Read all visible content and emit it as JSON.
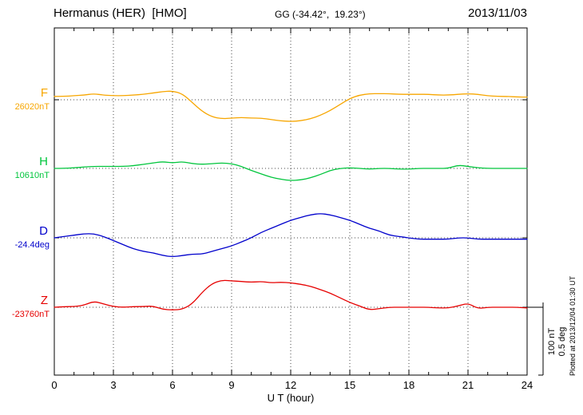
{
  "chart_data": {
    "type": "line",
    "title": "Hermanus (HER)  [HMO]",
    "station_coords": "GG (-34.42°,  19.23°)",
    "date": "2013/11/03",
    "xlabel": "U T (hour)",
    "x_range": [
      0,
      24
    ],
    "x_ticks": [
      0,
      3,
      6,
      9,
      12,
      15,
      18,
      21,
      24
    ],
    "grid": "dotted",
    "legend_position": "left-of-baselines",
    "scale_per_division": {
      "nT": 100,
      "deg": 0.5
    },
    "scale_labels": [
      "100 nT",
      "0.5 deg"
    ],
    "plotted_at": "Plotted at 2013/12/04 01:30 UT",
    "values_are": "deviation from baseline, plotted against baseline dotted line",
    "x": [
      0,
      0.5,
      1,
      1.5,
      2,
      2.5,
      3,
      3.5,
      4,
      4.5,
      5,
      5.5,
      6,
      6.5,
      7,
      7.5,
      8,
      8.5,
      9,
      9.5,
      10,
      10.5,
      11,
      11.5,
      12,
      12.5,
      13,
      13.5,
      14,
      14.5,
      15,
      15.5,
      16,
      16.5,
      17,
      17.5,
      18,
      18.5,
      19,
      19.5,
      20,
      20.5,
      21,
      21.5,
      22,
      22.5,
      23,
      23.5,
      24
    ],
    "series": [
      {
        "name": "F",
        "color": "#F7A600",
        "unit": "nT",
        "baseline_value": 26020,
        "baseline_label": "26020nT",
        "values": [
          5,
          5,
          6,
          7,
          9,
          7,
          6,
          6,
          7,
          8,
          10,
          12,
          13,
          9,
          -4,
          -17,
          -25,
          -28,
          -27,
          -26,
          -27,
          -27,
          -29,
          -31,
          -32,
          -31,
          -28,
          -23,
          -16,
          -7,
          2,
          7,
          9,
          9,
          9,
          8,
          8,
          8,
          8,
          7,
          7,
          8,
          9,
          8,
          6,
          5,
          5,
          4,
          4
        ]
      },
      {
        "name": "H",
        "color": "#00C53C",
        "unit": "nT",
        "baseline_value": 10610,
        "baseline_label": "10610nT",
        "values": [
          0,
          0,
          1,
          2,
          3,
          3,
          3,
          3,
          4,
          6,
          8,
          10,
          8,
          10,
          7,
          6,
          7,
          8,
          7,
          3,
          -3,
          -8,
          -13,
          -16,
          -18,
          -17,
          -14,
          -9,
          -3,
          0,
          1,
          0,
          -1,
          0,
          0,
          -1,
          -1,
          0,
          0,
          0,
          0,
          5,
          3,
          1,
          0,
          0,
          0,
          0,
          0
        ]
      },
      {
        "name": "D",
        "color": "#0000CC",
        "unit": "deg",
        "baseline_value": -24.4,
        "baseline_label": "-24.4deg",
        "values": [
          0.0,
          0.01,
          0.02,
          0.03,
          0.03,
          0.01,
          -0.02,
          -0.05,
          -0.08,
          -0.1,
          -0.11,
          -0.13,
          -0.14,
          -0.13,
          -0.12,
          -0.12,
          -0.1,
          -0.08,
          -0.06,
          -0.03,
          0.0,
          0.04,
          0.07,
          0.1,
          0.13,
          0.15,
          0.17,
          0.18,
          0.17,
          0.15,
          0.13,
          0.1,
          0.07,
          0.05,
          0.02,
          0.01,
          0.0,
          -0.01,
          -0.01,
          -0.01,
          -0.01,
          0.0,
          0.0,
          -0.01,
          -0.01,
          -0.01,
          -0.01,
          -0.01,
          -0.01
        ]
      },
      {
        "name": "Z",
        "color": "#E60000",
        "unit": "nT",
        "baseline_value": -23760,
        "baseline_label": "-23760nT",
        "values": [
          0,
          1,
          1,
          3,
          9,
          5,
          1,
          0,
          1,
          1,
          2,
          -3,
          -4,
          -3,
          5,
          22,
          35,
          40,
          39,
          38,
          37,
          38,
          36,
          37,
          36,
          34,
          31,
          26,
          21,
          14,
          7,
          2,
          -4,
          -2,
          0,
          0,
          0,
          0,
          0,
          -1,
          -1,
          2,
          6,
          -2,
          0,
          0,
          0,
          0,
          -1
        ]
      }
    ]
  }
}
